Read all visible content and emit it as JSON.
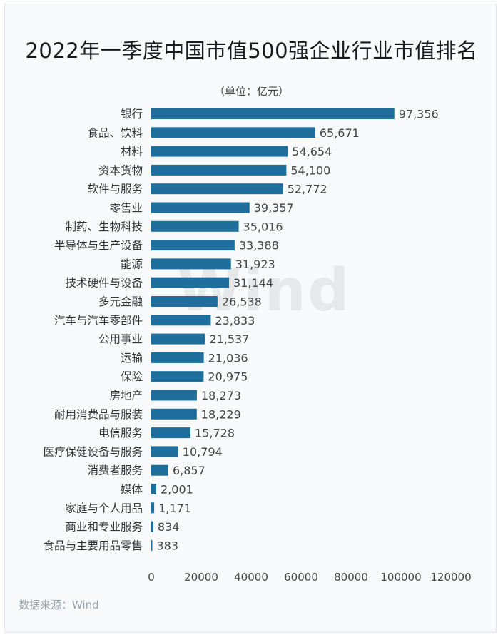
{
  "header": {
    "title": "2022年一季度中国市值500强企业行业市值排名",
    "unit": "（单位：亿元）"
  },
  "watermark": "Wind",
  "footer": {
    "source": "数据来源：Wind"
  },
  "colors": {
    "bar": "#1f6e9b",
    "background": "#f7f9fb"
  },
  "chart_data": {
    "type": "bar",
    "orientation": "horizontal",
    "title": "2022年一季度中国市值500强企业行业市值排名",
    "unit": "（单位：亿元）",
    "categories": [
      "银行",
      "食品、饮料",
      "材料",
      "资本货物",
      "软件与服务",
      "零售业",
      "制药、生物科技",
      "半导体与生产设备",
      "能源",
      "技术硬件与设备",
      "多元金融",
      "汽车与汽车零部件",
      "公用事业",
      "运输",
      "保险",
      "房地产",
      "耐用消费品与服装",
      "电信服务",
      "医疗保健设备与服务",
      "消费者服务",
      "媒体",
      "家庭与个人用品",
      "商业和专业服务",
      "食品与主要用品零售"
    ],
    "values": [
      97356,
      65671,
      54654,
      54100,
      52772,
      39357,
      35016,
      33388,
      31923,
      31144,
      26538,
      23833,
      21537,
      21036,
      20975,
      18273,
      18229,
      15728,
      10794,
      6857,
      2001,
      1171,
      834,
      383
    ],
    "value_labels": [
      "97,356",
      "65,671",
      "54,654",
      "54,100",
      "52,772",
      "39,357",
      "35,016",
      "33,388",
      "31,923",
      "31,144",
      "26,538",
      "23,833",
      "21,537",
      "21,036",
      "20,975",
      "18,273",
      "18,229",
      "15,728",
      "10,794",
      "6,857",
      "2,001",
      "1,171",
      "834",
      "383"
    ],
    "xlim": [
      0,
      120000
    ],
    "x_ticks": [
      0,
      20000,
      40000,
      60000,
      80000,
      100000,
      120000
    ],
    "x_tick_labels": [
      "0",
      "20000",
      "40000",
      "60000",
      "80000",
      "100000",
      "120000"
    ],
    "grid": false,
    "legend": "none"
  }
}
